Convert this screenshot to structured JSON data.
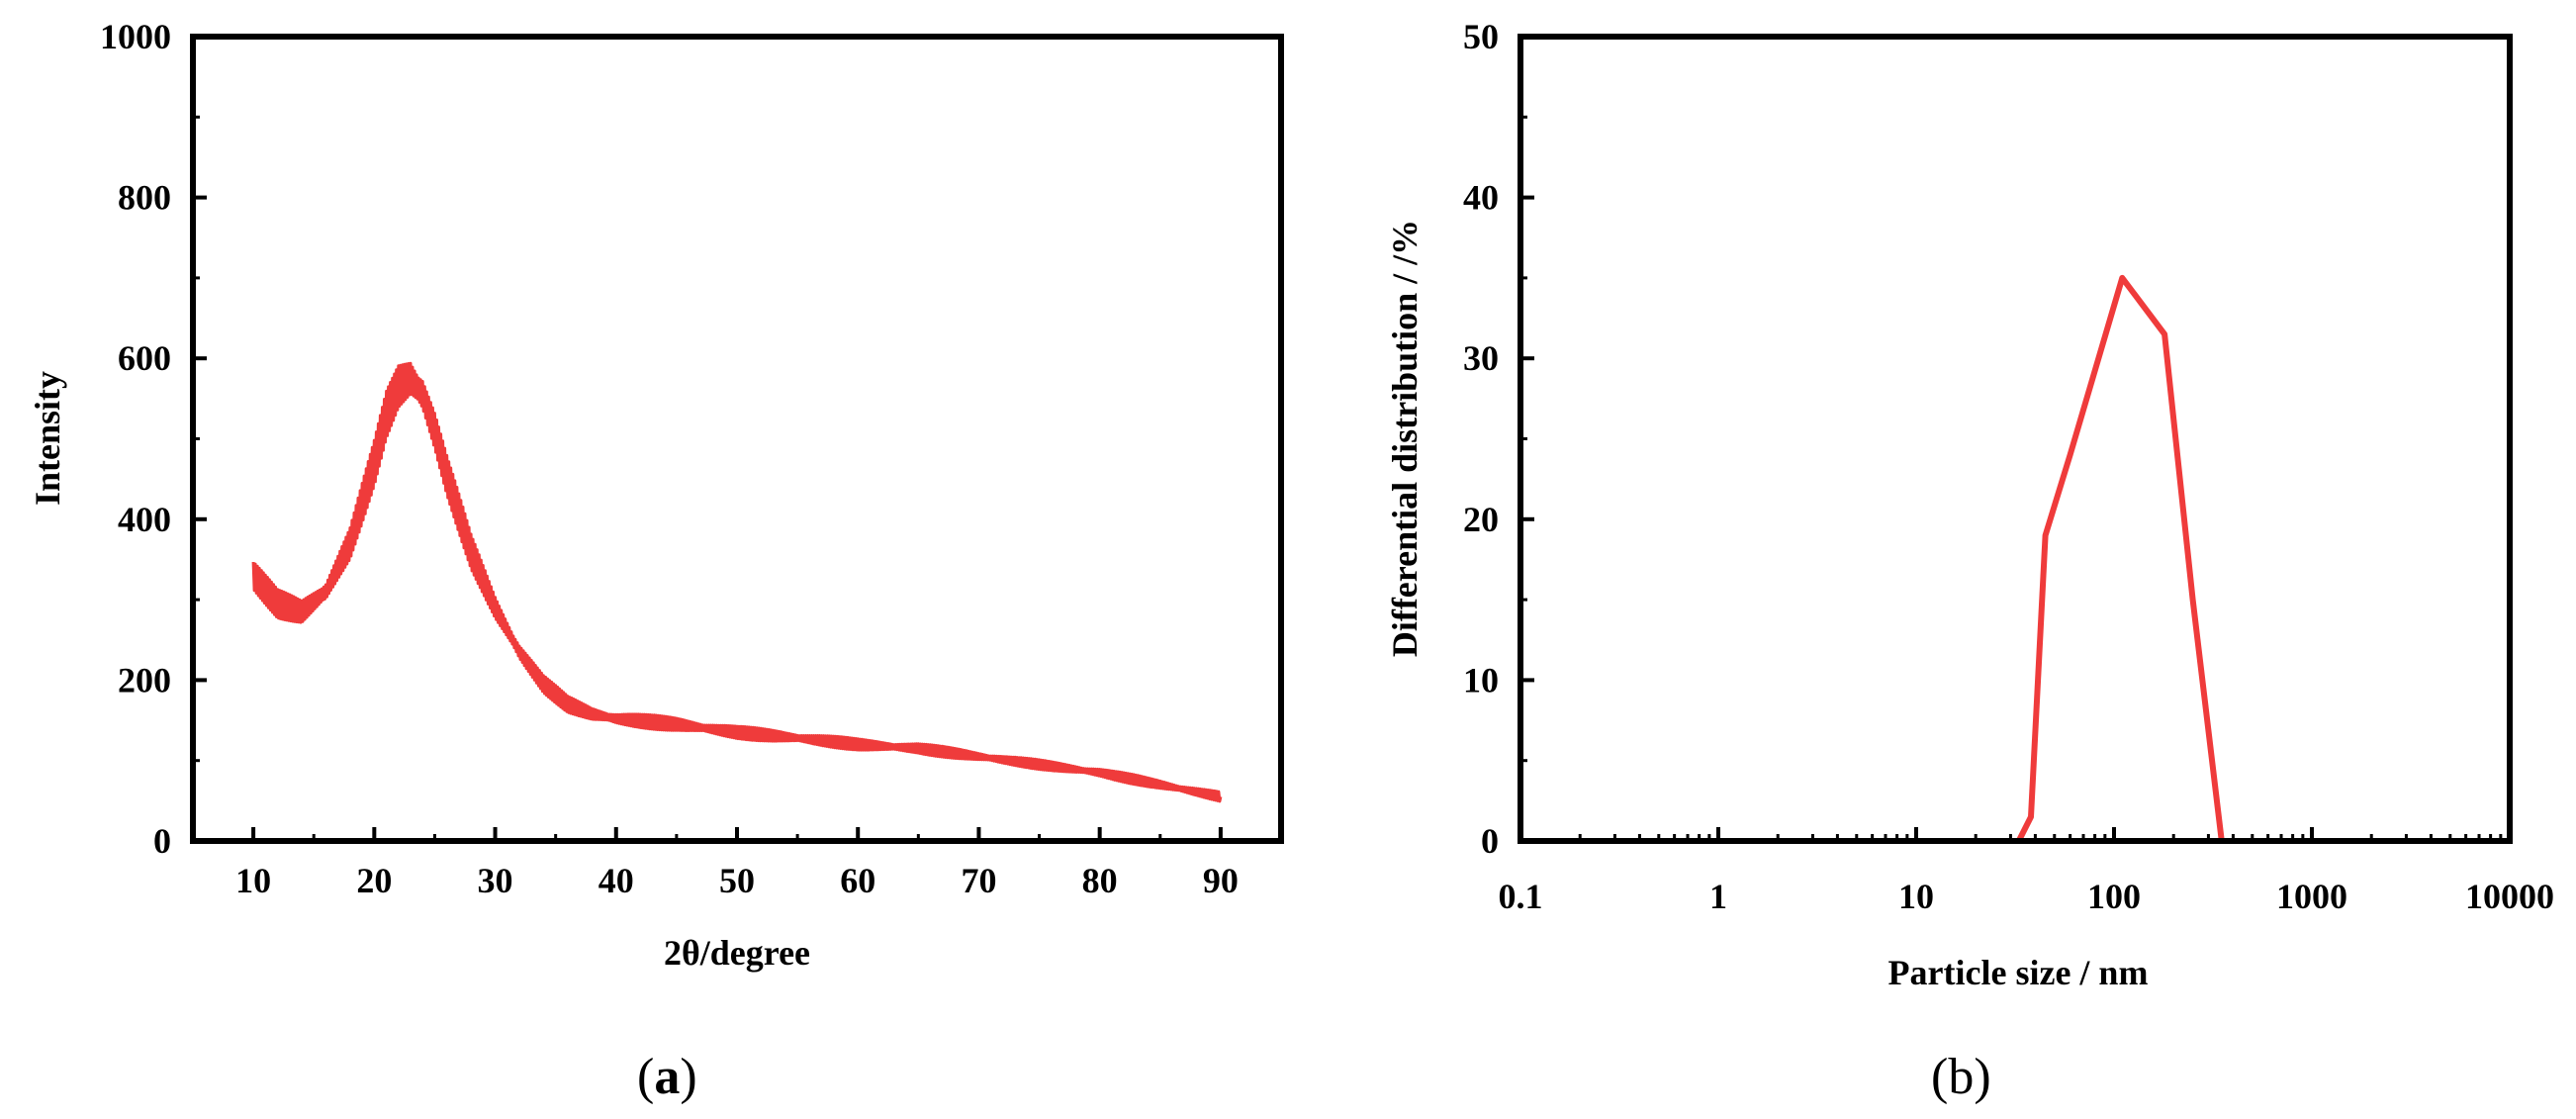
{
  "chart_data": [
    {
      "type": "line",
      "panel_label": "a",
      "title": "",
      "xlabel": "2θ/degree",
      "ylabel": "Intensity",
      "xlim": [
        5,
        95
      ],
      "ylim": [
        0,
        1000
      ],
      "x_ticks": [
        10,
        20,
        30,
        40,
        50,
        60,
        70,
        80,
        90
      ],
      "y_ticks": [
        0,
        200,
        400,
        600,
        800,
        1000
      ],
      "color": "#ef3b3b",
      "series": [
        {
          "x": [
            10,
            12,
            14,
            16,
            18,
            20,
            21,
            22,
            23,
            24,
            25,
            26,
            28,
            30,
            32,
            34,
            36,
            38,
            40,
            45,
            50,
            55,
            60,
            65,
            70,
            75,
            80,
            85,
            90
          ],
          "y": [
            330,
            295,
            285,
            310,
            370,
            470,
            530,
            565,
            575,
            555,
            510,
            455,
            360,
            290,
            235,
            195,
            170,
            158,
            152,
            145,
            135,
            128,
            120,
            115,
            105,
            95,
            85,
            70,
            55
          ]
        }
      ]
    },
    {
      "type": "line",
      "panel_label": "b",
      "title": "",
      "xlabel": "Particle size / nm",
      "ylabel": "Differential distribution / /%",
      "xscale": "log",
      "xlim": [
        0.1,
        10000
      ],
      "ylim": [
        0,
        50
      ],
      "x_ticks": [
        0.1,
        1,
        10,
        100,
        1000,
        10000
      ],
      "x_tick_labels": [
        "0.1",
        "1",
        "10",
        "100",
        "1000",
        "10000"
      ],
      "y_ticks": [
        0,
        10,
        20,
        30,
        40,
        50
      ],
      "color": "#ef3b3b",
      "series": [
        {
          "x": [
            0.4,
            1,
            10,
            33,
            38,
            45,
            60,
            110,
            180,
            250,
            350,
            1000,
            10000
          ],
          "y": [
            0,
            0,
            0,
            0,
            1.5,
            19,
            24,
            35,
            31.5,
            15,
            0,
            0,
            0
          ]
        }
      ]
    }
  ]
}
